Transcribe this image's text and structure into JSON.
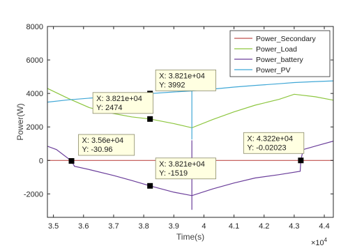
{
  "chart_data": {
    "type": "line",
    "xlabel": "Time(s)",
    "ylabel": "Power(W)",
    "x_exponent": "×10",
    "x_exponent_power": "4",
    "xlim": [
      34800,
      44300
    ],
    "ylim": [
      -3400,
      8000
    ],
    "xticks": [
      35000,
      36000,
      37000,
      38000,
      39000,
      40000,
      41000,
      42000,
      43000,
      44000
    ],
    "xtick_labels": [
      "3.5",
      "3.6",
      "3.7",
      "3.8",
      "3.9",
      "4",
      "4.1",
      "4.2",
      "4.3",
      "4.4"
    ],
    "yticks": [
      -2000,
      0,
      2000,
      4000,
      6000,
      8000
    ],
    "ytick_labels": [
      "-2000",
      "0",
      "2000",
      "4000",
      "6000",
      "8000"
    ],
    "grid": false,
    "legend_placement": "top-right",
    "series": [
      {
        "name": "Power_Secondary",
        "color": "#c0504d",
        "x": [
          34800,
          44300
        ],
        "y": [
          0,
          0
        ]
      },
      {
        "name": "Power_Load",
        "color": "#8dc63f",
        "x": [
          34800,
          35500,
          36200,
          37000,
          37600,
          38210,
          39000,
          39600,
          40300,
          41000,
          41700,
          42500,
          43000,
          43700,
          44300
        ],
        "y": [
          4300,
          3700,
          3150,
          2800,
          2600,
          2474,
          2200,
          1950,
          2450,
          2900,
          3300,
          3650,
          3950,
          3800,
          3600
        ]
      },
      {
        "name": "Power_battery",
        "color": "#6a3d9a",
        "x": [
          34800,
          35100,
          35600,
          35700,
          36200,
          37000,
          37600,
          38210,
          39000,
          39600,
          40300,
          41000,
          41700,
          42500,
          43200,
          43220,
          43300,
          43800,
          44300
        ],
        "y": [
          850,
          650,
          -30.96,
          -350,
          -550,
          -900,
          -1200,
          -1519,
          -1900,
          -2100,
          -1700,
          -1350,
          -1050,
          -850,
          -650,
          -0.02023,
          650,
          900,
          1150
        ]
      },
      {
        "name": "Power_PV",
        "color": "#3fa7d6",
        "x": [
          34800,
          35500,
          36200,
          37000,
          37600,
          38210,
          39000,
          39600,
          40300,
          41000,
          41700,
          42500,
          43000,
          43700,
          44300
        ],
        "y": [
          3480,
          3620,
          3720,
          3820,
          3900,
          3992,
          4090,
          4150,
          4260,
          4380,
          4480,
          4580,
          4650,
          4710,
          4750
        ]
      }
    ],
    "spikes": [
      {
        "series": "Power_PV",
        "x": 39600,
        "y_from": 1250,
        "y_to": 4150
      },
      {
        "series": "Power_battery",
        "x": 39600,
        "y_from": -2950,
        "y_to": 1200
      }
    ],
    "datatips": [
      {
        "x_label": "X: 3.821e+04",
        "y_label": "Y: 3992",
        "x": 38210,
        "y": 3992
      },
      {
        "x_label": "X: 3.821e+04",
        "y_label": "Y: 2474",
        "x": 38210,
        "y": 2474
      },
      {
        "x_label": "X: 3.56e+04",
        "y_label": "Y: -30.96",
        "x": 35600,
        "y": -30.96
      },
      {
        "x_label": "X: 3.821e+04",
        "y_label": "Y: -1519",
        "x": 38210,
        "y": -1519
      },
      {
        "x_label": "X: 4.322e+04",
        "y_label": "Y: -0.02023",
        "x": 43220,
        "y": -0.02023
      }
    ]
  }
}
